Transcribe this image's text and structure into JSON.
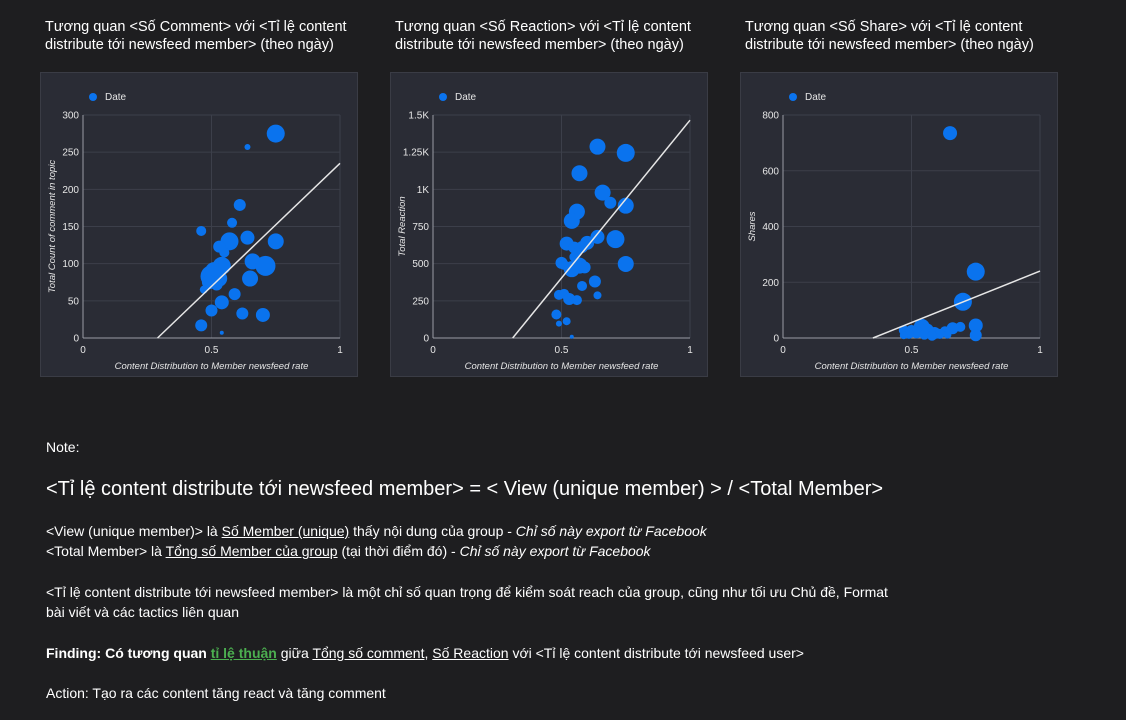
{
  "charts_meta": {
    "titles": [
      "Tương quan <Số Comment> với <Tỉ lệ content distribute tới newsfeed member> (theo ngày)",
      "Tương quan <Số Reaction> với <Tỉ lệ content distribute tới newsfeed member> (theo ngày)",
      "Tương quan <Số Share> với <Tỉ lệ content distribute tới newsfeed member> (theo ngày)"
    ],
    "colors": {
      "point": "#0a73ee",
      "trend": "#e6e6e6",
      "grid": "#3c3f4a",
      "panel": "#2a2c35"
    }
  },
  "chart_data": [
    {
      "type": "scatter",
      "title": "Tương quan <Số Comment> với <Tỉ lệ content distribute tới newsfeed member> (theo ngày)",
      "legend": [
        "Date"
      ],
      "legend_position": "top-left",
      "xlabel": "Content Distribution to Member newsfeed rate",
      "ylabel": "Total Count of comment in topic",
      "xlim": [
        0,
        1
      ],
      "ylim": [
        0,
        300
      ],
      "xticks": [
        "0",
        "0.5",
        "1"
      ],
      "yticks": [
        "0",
        "50",
        "100",
        "150",
        "200",
        "250",
        "300"
      ],
      "grid": true,
      "trendline": [
        [
          0.29,
          0
        ],
        [
          1.0,
          235
        ]
      ],
      "points": [
        {
          "x": 0.75,
          "y": 275,
          "size": 9
        },
        {
          "x": 0.64,
          "y": 257,
          "size": 3
        },
        {
          "x": 0.61,
          "y": 179,
          "size": 6
        },
        {
          "x": 0.58,
          "y": 155,
          "size": 5
        },
        {
          "x": 0.46,
          "y": 144,
          "size": 5
        },
        {
          "x": 0.64,
          "y": 135,
          "size": 7
        },
        {
          "x": 0.57,
          "y": 130,
          "size": 9
        },
        {
          "x": 0.75,
          "y": 130,
          "size": 8
        },
        {
          "x": 0.53,
          "y": 123,
          "size": 6
        },
        {
          "x": 0.55,
          "y": 115,
          "size": 5
        },
        {
          "x": 0.66,
          "y": 103,
          "size": 8
        },
        {
          "x": 0.71,
          "y": 97,
          "size": 10
        },
        {
          "x": 0.54,
          "y": 97,
          "size": 9
        },
        {
          "x": 0.51,
          "y": 90,
          "size": 9
        },
        {
          "x": 0.5,
          "y": 83,
          "size": 11
        },
        {
          "x": 0.53,
          "y": 80,
          "size": 8
        },
        {
          "x": 0.65,
          "y": 80,
          "size": 8
        },
        {
          "x": 0.49,
          "y": 75,
          "size": 7
        },
        {
          "x": 0.52,
          "y": 72,
          "size": 6
        },
        {
          "x": 0.47,
          "y": 65,
          "size": 4
        },
        {
          "x": 0.59,
          "y": 59,
          "size": 6
        },
        {
          "x": 0.54,
          "y": 48,
          "size": 7
        },
        {
          "x": 0.5,
          "y": 37,
          "size": 6
        },
        {
          "x": 0.62,
          "y": 33,
          "size": 6
        },
        {
          "x": 0.7,
          "y": 31,
          "size": 7
        },
        {
          "x": 0.46,
          "y": 17,
          "size": 6
        },
        {
          "x": 0.54,
          "y": 7,
          "size": 2
        }
      ]
    },
    {
      "type": "scatter",
      "title": "Tương quan <Số Reaction> với <Tỉ lệ content distribute tới newsfeed member> (theo ngày)",
      "legend": [
        "Date"
      ],
      "legend_position": "top-left",
      "xlabel": "Content Distribution to Member newsfeed rate",
      "ylabel": "Total Reaction",
      "xlim": [
        0,
        1
      ],
      "ylim": [
        0,
        1500
      ],
      "xticks": [
        "0",
        "0.5",
        "1"
      ],
      "yticks": [
        "0",
        "250",
        "500",
        "750",
        "1K",
        "1.25K",
        "1.5K"
      ],
      "grid": true,
      "trendline": [
        [
          0.31,
          0
        ],
        [
          1.0,
          1465
        ]
      ],
      "points": [
        {
          "x": 0.64,
          "y": 1287,
          "size": 8
        },
        {
          "x": 0.75,
          "y": 1245,
          "size": 9
        },
        {
          "x": 0.57,
          "y": 1108,
          "size": 8
        },
        {
          "x": 0.66,
          "y": 978,
          "size": 8
        },
        {
          "x": 0.69,
          "y": 910,
          "size": 6
        },
        {
          "x": 0.75,
          "y": 890,
          "size": 8
        },
        {
          "x": 0.56,
          "y": 850,
          "size": 8
        },
        {
          "x": 0.54,
          "y": 788,
          "size": 8
        },
        {
          "x": 0.64,
          "y": 680,
          "size": 7
        },
        {
          "x": 0.71,
          "y": 665,
          "size": 9
        },
        {
          "x": 0.52,
          "y": 635,
          "size": 7
        },
        {
          "x": 0.6,
          "y": 640,
          "size": 7
        },
        {
          "x": 0.58,
          "y": 612,
          "size": 6
        },
        {
          "x": 0.55,
          "y": 608,
          "size": 6
        },
        {
          "x": 0.56,
          "y": 575,
          "size": 5
        },
        {
          "x": 0.55,
          "y": 545,
          "size": 5
        },
        {
          "x": 0.5,
          "y": 505,
          "size": 6
        },
        {
          "x": 0.75,
          "y": 498,
          "size": 8
        },
        {
          "x": 0.51,
          "y": 492,
          "size": 5
        },
        {
          "x": 0.57,
          "y": 487,
          "size": 8
        },
        {
          "x": 0.59,
          "y": 475,
          "size": 6
        },
        {
          "x": 0.54,
          "y": 463,
          "size": 8
        },
        {
          "x": 0.63,
          "y": 380,
          "size": 6
        },
        {
          "x": 0.58,
          "y": 350,
          "size": 5
        },
        {
          "x": 0.49,
          "y": 290,
          "size": 5
        },
        {
          "x": 0.51,
          "y": 297,
          "size": 5
        },
        {
          "x": 0.64,
          "y": 287,
          "size": 4
        },
        {
          "x": 0.53,
          "y": 262,
          "size": 6
        },
        {
          "x": 0.56,
          "y": 255,
          "size": 5
        },
        {
          "x": 0.48,
          "y": 158,
          "size": 5
        },
        {
          "x": 0.52,
          "y": 113,
          "size": 4
        },
        {
          "x": 0.49,
          "y": 97,
          "size": 3
        },
        {
          "x": 0.54,
          "y": 8,
          "size": 2
        }
      ]
    },
    {
      "type": "scatter",
      "title": "Tương quan <Số Share> với <Tỉ lệ content distribute tới newsfeed member> (theo ngày)",
      "legend": [
        "Date"
      ],
      "legend_position": "top-left",
      "xlabel": "Content Distribution to Member newsfeed rate",
      "ylabel": "Shares",
      "xlim": [
        0,
        1
      ],
      "ylim": [
        0,
        800
      ],
      "xticks": [
        "0",
        "0.5",
        "1"
      ],
      "yticks": [
        "0",
        "200",
        "400",
        "600",
        "800"
      ],
      "grid": true,
      "trendline": [
        [
          0.35,
          0
        ],
        [
          1.0,
          240
        ]
      ],
      "points": [
        {
          "x": 0.65,
          "y": 735,
          "size": 7
        },
        {
          "x": 0.75,
          "y": 238,
          "size": 9
        },
        {
          "x": 0.7,
          "y": 130,
          "size": 9
        },
        {
          "x": 0.75,
          "y": 45,
          "size": 7
        },
        {
          "x": 0.54,
          "y": 40,
          "size": 8
        },
        {
          "x": 0.69,
          "y": 40,
          "size": 5
        },
        {
          "x": 0.66,
          "y": 35,
          "size": 6
        },
        {
          "x": 0.47,
          "y": 28,
          "size": 5
        },
        {
          "x": 0.5,
          "y": 25,
          "size": 6
        },
        {
          "x": 0.56,
          "y": 27,
          "size": 7
        },
        {
          "x": 0.63,
          "y": 24,
          "size": 5
        },
        {
          "x": 0.52,
          "y": 20,
          "size": 6
        },
        {
          "x": 0.59,
          "y": 18,
          "size": 6
        },
        {
          "x": 0.49,
          "y": 15,
          "size": 5
        },
        {
          "x": 0.61,
          "y": 15,
          "size": 5
        },
        {
          "x": 0.55,
          "y": 12,
          "size": 5
        },
        {
          "x": 0.75,
          "y": 10,
          "size": 6
        },
        {
          "x": 0.58,
          "y": 8,
          "size": 5
        },
        {
          "x": 0.47,
          "y": 10,
          "size": 4
        },
        {
          "x": 0.64,
          "y": 12,
          "size": 4
        }
      ]
    }
  ],
  "notes": {
    "heading": "Note:",
    "formula": "<Tỉ lệ content distribute tới newsfeed member> = < View (unique member) > / <Total Member>",
    "line1": {
      "a": "<View (unique member)> là ",
      "b": "Số Member (unique)",
      "c": " thấy nội dung của group - ",
      "d": "Chỉ số này export từ Facebook"
    },
    "line2": {
      "a": "<Total Member> là ",
      "b": "Tổng số Member của group",
      "c": " (tại thời điểm đó) - ",
      "d": "Chỉ số này export từ Facebook"
    },
    "paragraph": "<Tỉ lệ content distribute tới newsfeed member> là một chỉ số quan trọng để kiểm soát reach của group, cũng như tối ưu Chủ đề, Format bài viết và các tactics liên quan",
    "finding": {
      "a": "Finding: Có tương quan ",
      "b": "tỉ lệ thuận",
      "c": " giữa ",
      "d": "Tổng số comment",
      "e": ", ",
      "f": "Số Reaction",
      "g": " với <Tỉ lệ content distribute tới newsfeed user>"
    },
    "action": "Action: Tạo ra các content tăng react và tăng comment"
  }
}
